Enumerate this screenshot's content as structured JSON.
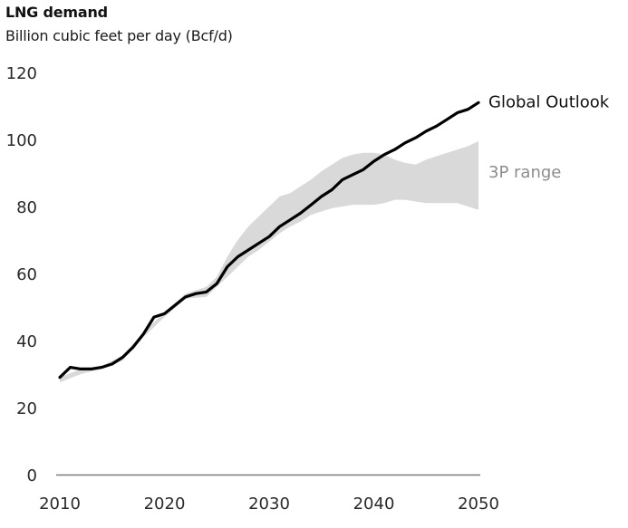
{
  "chart_data": {
    "type": "line",
    "title": "LNG demand",
    "subtitle": "Billion cubic feet per day (Bcf/d)",
    "xlabel": "",
    "ylabel": "Billion cubic feet per day (Bcf/d)",
    "xlim": [
      2010,
      2050
    ],
    "ylim": [
      0,
      120
    ],
    "x_ticks": [
      2010,
      2020,
      2030,
      2040,
      2050
    ],
    "y_ticks": [
      0,
      20,
      40,
      60,
      80,
      100,
      120
    ],
    "grid": false,
    "legend": "direct labels at right end of series",
    "x": [
      2010,
      2011,
      2012,
      2013,
      2014,
      2015,
      2016,
      2017,
      2018,
      2019,
      2020,
      2021,
      2022,
      2023,
      2024,
      2025,
      2026,
      2027,
      2028,
      2029,
      2030,
      2031,
      2032,
      2033,
      2034,
      2035,
      2036,
      2037,
      2038,
      2039,
      2040,
      2041,
      2042,
      2043,
      2044,
      2045,
      2046,
      2047,
      2048,
      2049,
      2050
    ],
    "series": [
      {
        "name": "Global Outlook",
        "color": "#000000",
        "values": [
          29,
          32,
          31.5,
          31.5,
          32,
          33,
          35,
          38,
          42,
          47,
          48,
          50.5,
          53,
          54,
          54.5,
          57,
          62,
          65,
          67,
          69,
          71,
          74,
          76,
          78,
          80.5,
          83,
          85,
          88,
          89.5,
          91,
          93.5,
          95.5,
          97,
          99,
          100.5,
          102.5,
          104,
          106,
          108,
          109,
          111
        ]
      }
    ],
    "band": {
      "name": "3P range",
      "color": "#d9d9d9",
      "label_color": "#8c8c8c",
      "x": [
        2010,
        2012,
        2014,
        2016,
        2018,
        2020,
        2022,
        2024,
        2025,
        2026,
        2027,
        2028,
        2029,
        2030,
        2031,
        2032,
        2033,
        2034,
        2035,
        2036,
        2037,
        2038,
        2039,
        2040,
        2041,
        2042,
        2043,
        2044,
        2045,
        2046,
        2047,
        2048,
        2049,
        2050
      ],
      "upper": [
        29,
        31.5,
        32.5,
        35.5,
        42.5,
        48.5,
        54,
        56,
        59,
        65,
        70,
        74,
        77,
        80,
        83,
        84,
        86,
        88,
        90.5,
        92.5,
        94.5,
        95.5,
        96,
        96,
        95.5,
        94,
        93,
        92.5,
        94,
        95,
        96,
        97,
        98,
        99.5
      ],
      "lower": [
        27.5,
        30,
        31.5,
        34,
        41,
        47,
        52.5,
        53,
        56,
        59,
        62,
        65,
        67,
        69.5,
        72,
        74,
        75.5,
        77.5,
        78.5,
        79.5,
        80,
        80.5,
        80.5,
        80.5,
        81,
        82,
        82,
        81.5,
        81,
        81,
        81,
        81,
        80,
        79
      ]
    }
  }
}
